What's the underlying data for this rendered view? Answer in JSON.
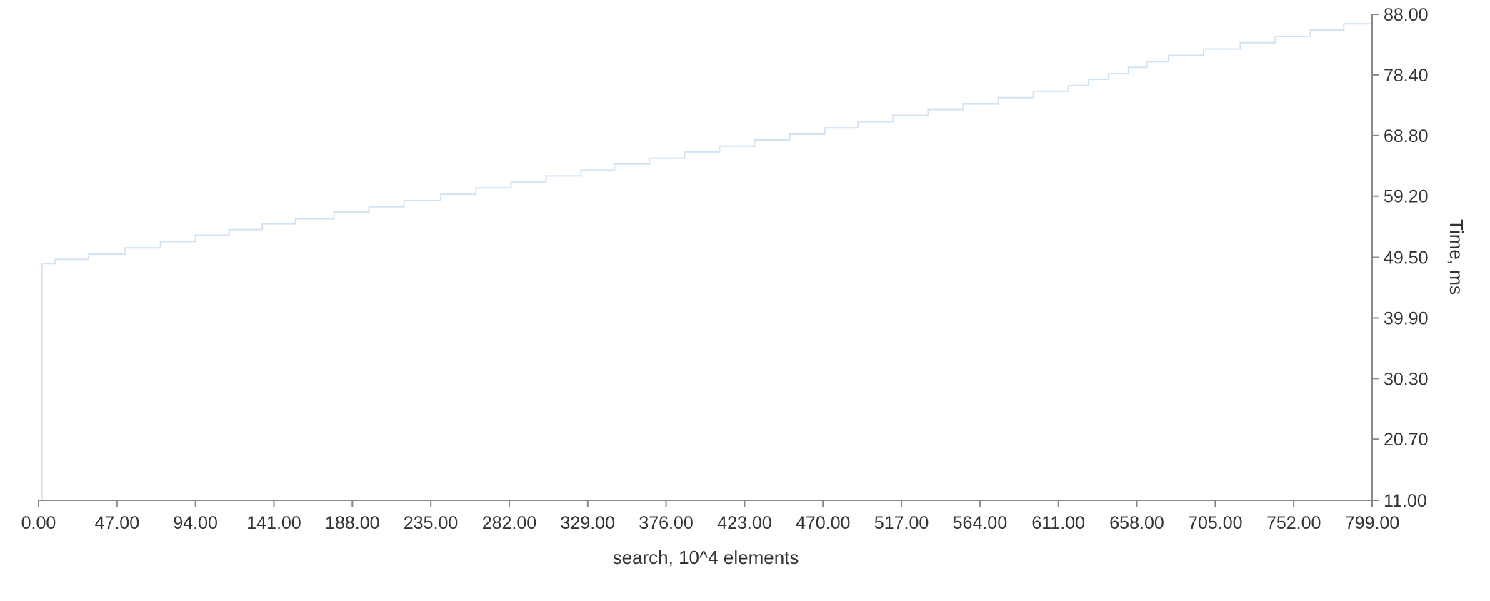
{
  "chart_data": {
    "type": "line",
    "title": "",
    "xlabel": "search, 10^4 elements",
    "ylabel": "Time, ms",
    "xlim": [
      0,
      799
    ],
    "ylim": [
      11,
      88
    ],
    "x_ticks": [
      "0.00",
      "47.00",
      "94.00",
      "141.00",
      "188.00",
      "235.00",
      "282.00",
      "329.00",
      "376.00",
      "423.00",
      "470.00",
      "517.00",
      "564.00",
      "611.00",
      "658.00",
      "705.00",
      "752.00",
      "799.00"
    ],
    "y_ticks": [
      "11.00",
      "20.70",
      "30.30",
      "39.90",
      "49.50",
      "59.20",
      "68.80",
      "78.40",
      "88.00"
    ],
    "y_axis_position": "right",
    "grid": false,
    "legend": "none",
    "series": [
      {
        "color": "#cfe3f5",
        "step": "after",
        "x": [
          0,
          2,
          10,
          30,
          52,
          73,
          94,
          114,
          134,
          154,
          177,
          198,
          219,
          241,
          262,
          283,
          304,
          325,
          345,
          366,
          387,
          408,
          429,
          450,
          471,
          491,
          512,
          533,
          554,
          575,
          596,
          617,
          629,
          641,
          653,
          664,
          677,
          698,
          720,
          741,
          762,
          782,
          799
        ],
        "y": [
          11,
          48.5,
          49.2,
          50.0,
          51.0,
          52.0,
          53.0,
          53.9,
          54.8,
          55.6,
          56.7,
          57.5,
          58.5,
          59.5,
          60.5,
          61.4,
          62.4,
          63.3,
          64.3,
          65.2,
          66.2,
          67.1,
          68.1,
          69.0,
          70.0,
          71.0,
          72.0,
          72.9,
          73.8,
          74.8,
          75.8,
          76.7,
          77.7,
          78.6,
          79.6,
          80.5,
          81.5,
          82.5,
          83.5,
          84.5,
          85.5,
          86.5,
          87.4
        ]
      }
    ]
  }
}
